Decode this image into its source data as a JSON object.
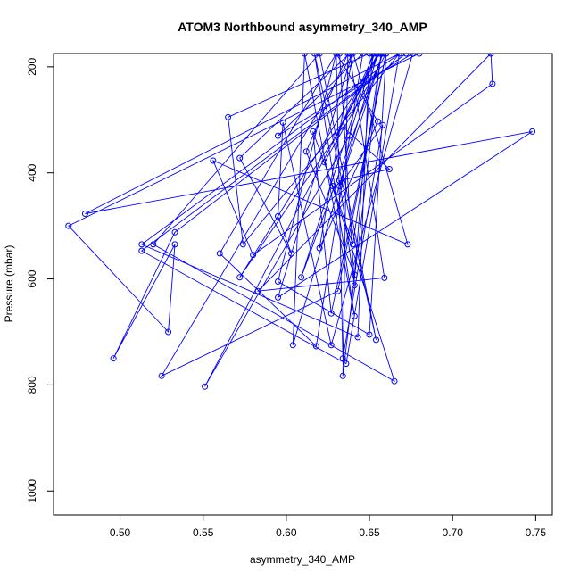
{
  "chart_data": {
    "type": "line",
    "title": "ATOM3 Northbound asymmetry_340_AMP",
    "xlabel": "asymmetry_340_AMP",
    "ylabel": "Pressure (mbar)",
    "xlim": [
      0.46,
      0.76
    ],
    "ylim": [
      1045,
      175
    ],
    "y_reversed": true,
    "grid": false,
    "x_ticks": [
      0.5,
      0.55,
      0.6,
      0.65,
      0.7,
      0.75
    ],
    "x_tick_labels": [
      "0.50",
      "0.55",
      "0.60",
      "0.65",
      "0.70",
      "0.75"
    ],
    "y_ticks": [
      200,
      400,
      600,
      800,
      1000
    ],
    "y_tick_labels": [
      "200",
      "400",
      "600",
      "800",
      "1000"
    ],
    "series": [
      {
        "color": "#0000ff",
        "marker": "open-circle",
        "points": [
          [
            0.68,
            175
          ],
          [
            0.469,
            500
          ],
          [
            0.529,
            700
          ],
          [
            0.533,
            535
          ],
          [
            0.496,
            750
          ],
          [
            0.533,
            512
          ],
          [
            0.672,
            175
          ],
          [
            0.513,
            547
          ],
          [
            0.636,
            760
          ],
          [
            0.668,
            175
          ],
          [
            0.513,
            535
          ],
          [
            0.643,
            710
          ],
          [
            0.65,
            175
          ],
          [
            0.565,
            295
          ],
          [
            0.574,
            535
          ],
          [
            0.668,
            175
          ],
          [
            0.479,
            477
          ],
          [
            0.748,
            322
          ],
          [
            0.595,
            635
          ],
          [
            0.64,
            172
          ],
          [
            0.673,
            535
          ],
          [
            0.556,
            377
          ],
          [
            0.58,
            555
          ],
          [
            0.724,
            232
          ],
          [
            0.723,
            175
          ],
          [
            0.583,
            623
          ],
          [
            0.659,
            598
          ],
          [
            0.638,
            175
          ],
          [
            0.572,
            372
          ],
          [
            0.603,
            552
          ],
          [
            0.595,
            482
          ],
          [
            0.598,
            305
          ],
          [
            0.627,
            725
          ],
          [
            0.676,
            175
          ],
          [
            0.595,
            330
          ],
          [
            0.646,
            175
          ],
          [
            0.618,
            727
          ],
          [
            0.56,
            552
          ],
          [
            0.63,
            175
          ],
          [
            0.595,
            605
          ],
          [
            0.65,
            705
          ],
          [
            0.66,
            175
          ],
          [
            0.631,
            623
          ],
          [
            0.525,
            783
          ],
          [
            0.64,
            175
          ],
          [
            0.62,
            542
          ],
          [
            0.655,
            303
          ],
          [
            0.63,
            175
          ],
          [
            0.634,
            750
          ],
          [
            0.658,
            310
          ],
          [
            0.632,
            425
          ],
          [
            0.658,
            175
          ],
          [
            0.609,
            597
          ],
          [
            0.652,
            175
          ],
          [
            0.641,
            592
          ],
          [
            0.612,
            360
          ],
          [
            0.637,
            175
          ],
          [
            0.634,
            783
          ],
          [
            0.657,
            175
          ],
          [
            0.64,
            535
          ],
          [
            0.628,
            425
          ],
          [
            0.616,
            322
          ],
          [
            0.627,
            665
          ],
          [
            0.66,
            175
          ],
          [
            0.623,
            380
          ],
          [
            0.665,
            793
          ],
          [
            0.52,
            535
          ],
          [
            0.62,
            175
          ],
          [
            0.654,
            715
          ],
          [
            0.617,
            175
          ],
          [
            0.641,
            670
          ],
          [
            0.611,
            175
          ],
          [
            0.604,
            725
          ],
          [
            0.655,
            175
          ],
          [
            0.63,
            330
          ],
          [
            0.653,
            175
          ],
          [
            0.638,
            330
          ],
          [
            0.551,
            803
          ],
          [
            0.656,
            175
          ],
          [
            0.572,
            597
          ],
          [
            0.634,
            313
          ],
          [
            0.662,
            393
          ],
          [
            0.632,
            415
          ],
          [
            0.641,
            612
          ],
          [
            0.632,
            175
          ]
        ]
      }
    ]
  }
}
